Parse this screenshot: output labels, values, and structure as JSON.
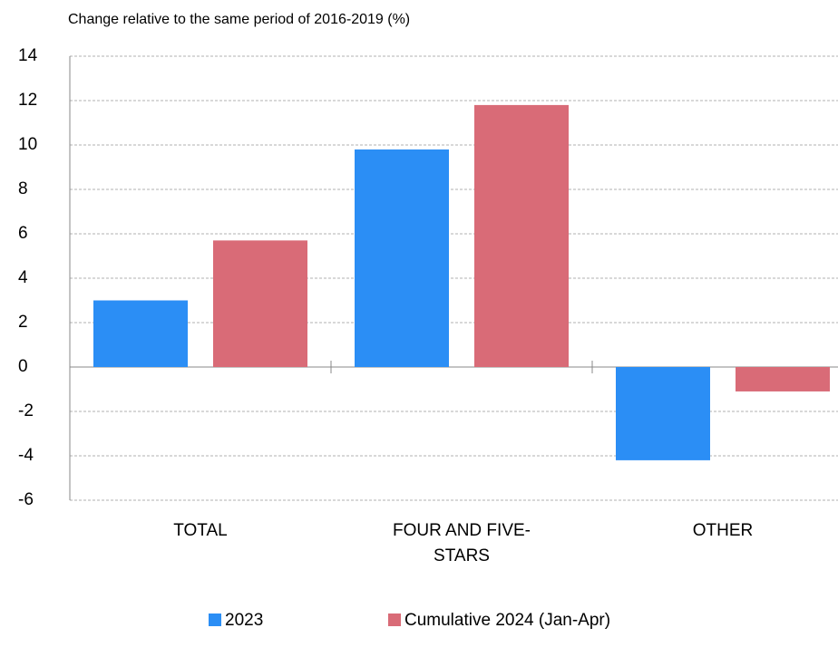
{
  "chart_data": {
    "type": "bar",
    "title": "Change relative to the same period of 2016-2019 (%)",
    "categories": [
      "TOTAL",
      "FOUR AND FIVE-STARS",
      "OTHER"
    ],
    "series": [
      {
        "name": "2023",
        "color": "#2b8ef5",
        "values": [
          3.0,
          9.8,
          -4.2
        ]
      },
      {
        "name": "Cumulative 2024 (Jan-Apr)",
        "color": "#d96b77",
        "values": [
          5.7,
          11.8,
          -1.1
        ]
      }
    ],
    "ylim": [
      -6,
      14
    ],
    "yticks": [
      -6,
      -4,
      -2,
      0,
      2,
      4,
      6,
      8,
      10,
      12,
      14
    ],
    "grid": true,
    "legend": "bottom"
  }
}
